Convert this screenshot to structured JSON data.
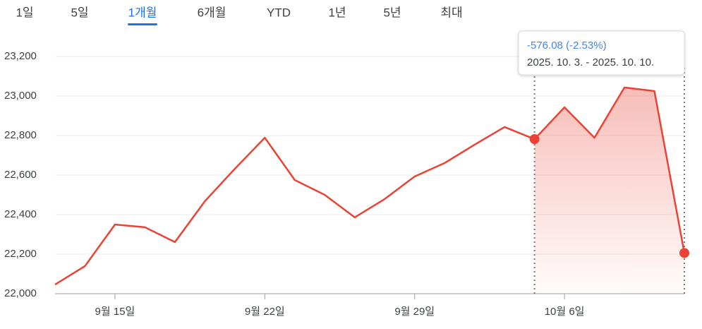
{
  "range_tabs": [
    "1일",
    "5일",
    "1개월",
    "6개월",
    "YTD",
    "1년",
    "5년",
    "최대"
  ],
  "active_tab": 2,
  "chart_data": {
    "type": "line",
    "color": "#ea4335",
    "categories": [
      null,
      null,
      "9월 15일",
      null,
      null,
      null,
      null,
      "9월 22일",
      null,
      null,
      null,
      null,
      "9월 29일",
      null,
      null,
      null,
      null,
      "10월 6일",
      null,
      null,
      null,
      null
    ],
    "values": [
      22046,
      22140,
      22350,
      22336,
      22261,
      22468,
      22632,
      22789,
      22575,
      22500,
      22386,
      22479,
      22593,
      22661,
      22754,
      22843,
      22782,
      22943,
      22789,
      23043,
      23025,
      22206
    ],
    "ylim": [
      22000,
      23200
    ],
    "yticks": [
      {
        "value": 22000,
        "label": "22,000"
      },
      {
        "value": 22200,
        "label": "22,200"
      },
      {
        "value": 22400,
        "label": "22,400"
      },
      {
        "value": 22600,
        "label": "22,600"
      },
      {
        "value": 22800,
        "label": "22,800"
      },
      {
        "value": 23000,
        "label": "23,000"
      },
      {
        "value": 23200,
        "label": "23,200"
      }
    ],
    "grid": true,
    "selection": {
      "start": 16,
      "end": 21,
      "change": "-576.08 (-2.53%)",
      "dates": "2025. 10. 3. - 2025. 10. 10."
    }
  }
}
